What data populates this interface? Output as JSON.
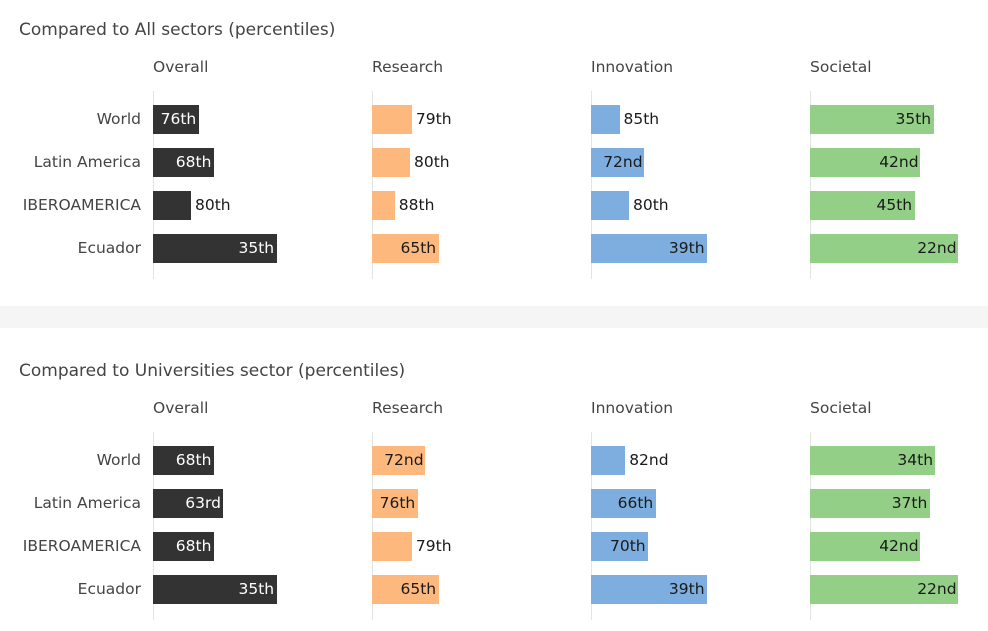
{
  "colors": {
    "overall": "#333333",
    "research": "#fdb97d",
    "innovation": "#7daedf",
    "societal": "#94cf87"
  },
  "chart_data": [
    {
      "type": "bar",
      "title": "Compared to All sectors (percentiles)",
      "categories": [
        "World",
        "Latin America",
        "IBEROAMERICA",
        "Ecuador"
      ],
      "series": [
        {
          "name": "Overall",
          "values": [
            76,
            68,
            80,
            35
          ],
          "labels": [
            "76th",
            "68th",
            "80th",
            "35th"
          ]
        },
        {
          "name": "Research",
          "values": [
            79,
            80,
            88,
            65
          ],
          "labels": [
            "79th",
            "80th",
            "88th",
            "65th"
          ]
        },
        {
          "name": "Innovation",
          "values": [
            85,
            72,
            80,
            39
          ],
          "labels": [
            "85th",
            "72nd",
            "80th",
            "39th"
          ]
        },
        {
          "name": "Societal",
          "values": [
            35,
            42,
            45,
            22
          ],
          "labels": [
            "35th",
            "42nd",
            "45th",
            "22nd"
          ]
        }
      ],
      "orientation": "horizontal",
      "scale": "reversed percentile (lower percentile = longer bar)"
    },
    {
      "type": "bar",
      "title": "Compared to Universities sector (percentiles)",
      "categories": [
        "World",
        "Latin America",
        "IBEROAMERICA",
        "Ecuador"
      ],
      "series": [
        {
          "name": "Overall",
          "values": [
            68,
            63,
            68,
            35
          ],
          "labels": [
            "68th",
            "63rd",
            "68th",
            "35th"
          ]
        },
        {
          "name": "Research",
          "values": [
            72,
            76,
            79,
            65
          ],
          "labels": [
            "72nd",
            "76th",
            "79th",
            "65th"
          ]
        },
        {
          "name": "Innovation",
          "values": [
            82,
            66,
            70,
            39
          ],
          "labels": [
            "82nd",
            "66th",
            "70th",
            "39th"
          ]
        },
        {
          "name": "Societal",
          "values": [
            34,
            37,
            42,
            22
          ],
          "labels": [
            "34th",
            "37th",
            "42nd",
            "22nd"
          ]
        }
      ],
      "orientation": "horizontal",
      "scale": "reversed percentile (lower percentile = longer bar)"
    }
  ]
}
